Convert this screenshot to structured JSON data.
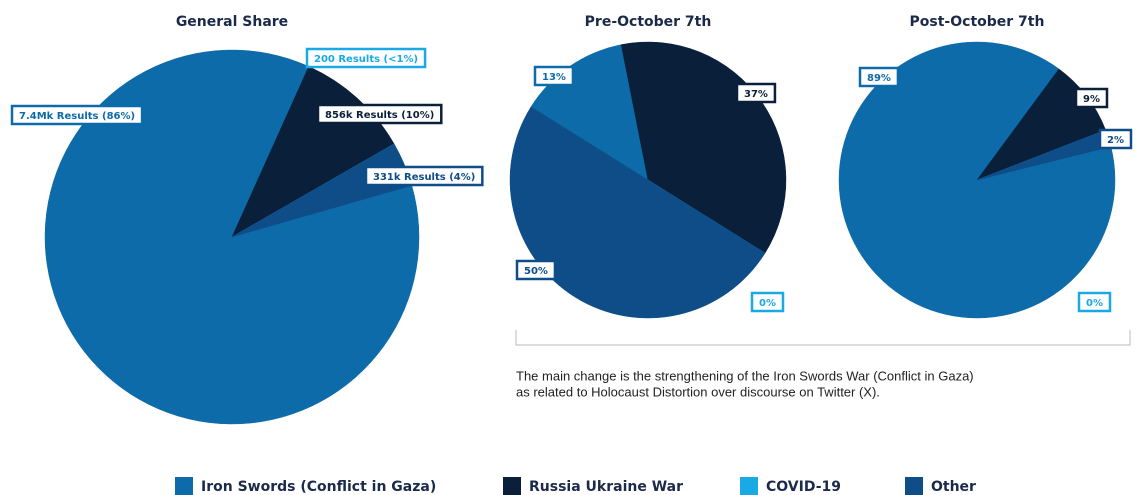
{
  "chart_data": [
    {
      "type": "pie",
      "title": "General Share",
      "categories": [
        "Iron Swords (Conflict in Gaza)",
        "Russia Ukraine War",
        "COVID-19",
        "Other"
      ],
      "values": [
        7400000,
        856000,
        200,
        331000
      ],
      "value_labels": [
        "7.4Mk Results (86%)",
        "856k Results (10%)",
        "200 Results (<1%)",
        "331k Results (4%)"
      ],
      "colors": [
        "#0c6ba8",
        "#0a1f3a",
        "#19a9e4",
        "#0e4d88"
      ]
    },
    {
      "type": "pie",
      "title": "Pre-October 7th",
      "categories": [
        "Iron Swords (Conflict in Gaza)",
        "Russia Ukraine War",
        "COVID-19",
        "Other"
      ],
      "values": [
        13,
        37,
        0,
        50
      ],
      "value_labels": [
        "13%",
        "37%",
        "0%",
        "50%"
      ],
      "colors": [
        "#0c6ba8",
        "#0a1f3a",
        "#19a9e4",
        "#0e4d88"
      ]
    },
    {
      "type": "pie",
      "title": "Post-October 7th",
      "categories": [
        "Iron Swords (Conflict in Gaza)",
        "Russia Ukraine War",
        "COVID-19",
        "Other"
      ],
      "values": [
        89,
        9,
        0,
        2
      ],
      "value_labels": [
        "89%",
        "9%",
        "0%",
        "2%"
      ],
      "colors": [
        "#0c6ba8",
        "#0a1f3a",
        "#19a9e4",
        "#0e4d88"
      ]
    }
  ],
  "note": [
    "The main change is the strengthening of the Iron Swords War (Conflict in Gaza)",
    "as related to Holocaust Distortion over discourse on Twitter (X)."
  ]
}
